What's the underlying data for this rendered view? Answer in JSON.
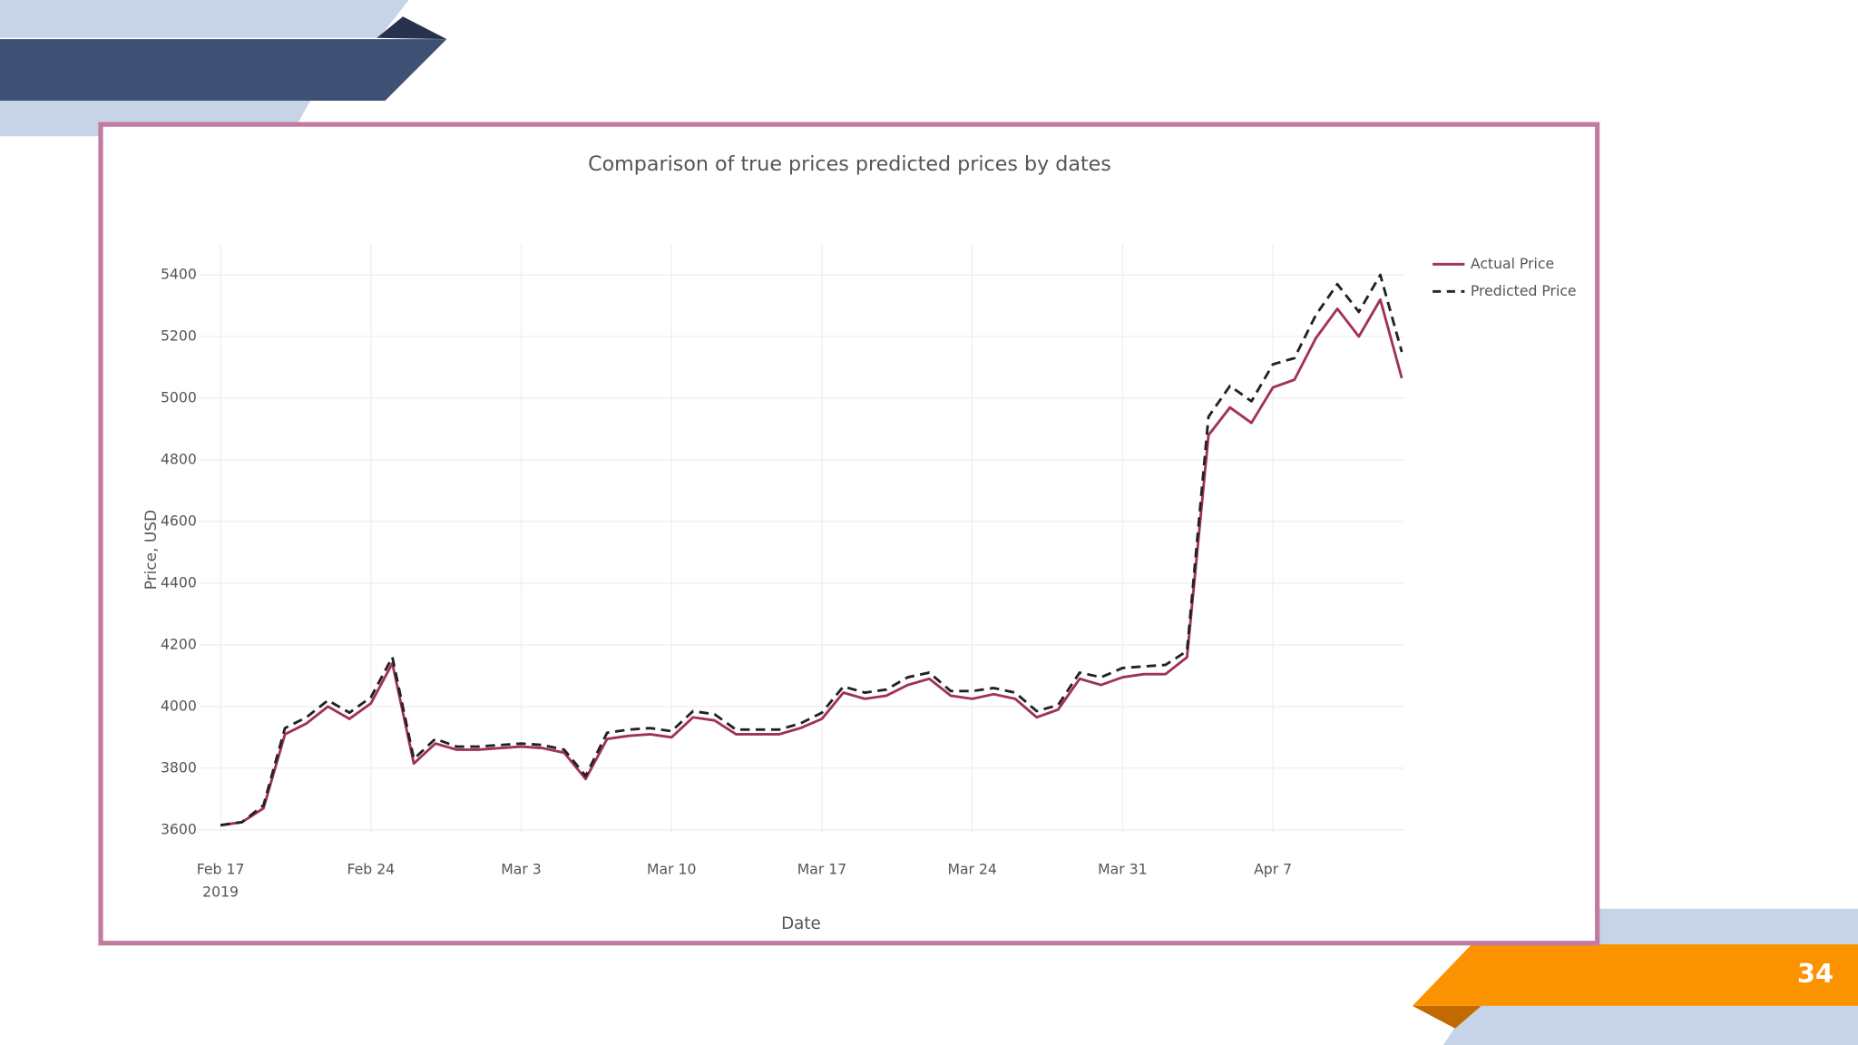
{
  "slide": {
    "page_number": "34"
  },
  "chart_data": {
    "type": "line",
    "title": "Comparison of true prices predicted prices by dates",
    "x_label": "Date",
    "y_label": "Price, USD",
    "x": [
      "2019-02-17",
      "2019-02-18",
      "2019-02-19",
      "2019-02-20",
      "2019-02-21",
      "2019-02-22",
      "2019-02-23",
      "2019-02-24",
      "2019-02-25",
      "2019-02-26",
      "2019-02-27",
      "2019-02-28",
      "2019-03-01",
      "2019-03-02",
      "2019-03-03",
      "2019-03-04",
      "2019-03-05",
      "2019-03-06",
      "2019-03-07",
      "2019-03-08",
      "2019-03-09",
      "2019-03-10",
      "2019-03-11",
      "2019-03-12",
      "2019-03-13",
      "2019-03-14",
      "2019-03-15",
      "2019-03-16",
      "2019-03-17",
      "2019-03-18",
      "2019-03-19",
      "2019-03-20",
      "2019-03-21",
      "2019-03-22",
      "2019-03-23",
      "2019-03-24",
      "2019-03-25",
      "2019-03-26",
      "2019-03-27",
      "2019-03-28",
      "2019-03-29",
      "2019-03-30",
      "2019-03-31",
      "2019-04-01",
      "2019-04-02",
      "2019-04-03",
      "2019-04-04",
      "2019-04-05",
      "2019-04-06",
      "2019-04-07",
      "2019-04-08",
      "2019-04-09",
      "2019-04-10",
      "2019-04-11",
      "2019-04-12",
      "2019-04-13"
    ],
    "series": [
      {
        "name": "Actual Price",
        "color": "#a0325a",
        "dash": "solid",
        "values": [
          3615,
          3625,
          3670,
          3910,
          3945,
          4000,
          3960,
          4010,
          4140,
          3815,
          3880,
          3860,
          3860,
          3865,
          3870,
          3865,
          3850,
          3765,
          3895,
          3905,
          3910,
          3900,
          3965,
          3955,
          3910,
          3910,
          3910,
          3930,
          3960,
          4045,
          4025,
          4035,
          4070,
          4090,
          4035,
          4025,
          4040,
          4025,
          3965,
          3990,
          4090,
          4070,
          4095,
          4105,
          4105,
          4160,
          4880,
          4970,
          4920,
          5035,
          5060,
          5195,
          5290,
          5200,
          5320,
          5065
        ]
      },
      {
        "name": "Predicted Price",
        "color": "#222222",
        "dash": "dashed",
        "values": [
          3615,
          3625,
          3680,
          3930,
          3965,
          4020,
          3980,
          4030,
          4160,
          3830,
          3895,
          3870,
          3870,
          3875,
          3880,
          3875,
          3860,
          3775,
          3915,
          3925,
          3930,
          3920,
          3985,
          3975,
          3925,
          3925,
          3925,
          3945,
          3980,
          4065,
          4045,
          4055,
          4095,
          4110,
          4050,
          4050,
          4060,
          4045,
          3985,
          4005,
          4110,
          4095,
          4125,
          4130,
          4135,
          4180,
          4940,
          5040,
          4990,
          5110,
          5130,
          5270,
          5370,
          5280,
          5400,
          5150
        ]
      }
    ],
    "xlim": [
      "2019-02-16",
      "2019-04-13"
    ],
    "xticks": [
      {
        "value": "2019-02-17",
        "label": "Feb 17\n2019"
      },
      {
        "value": "2019-02-24",
        "label": "Feb 24"
      },
      {
        "value": "2019-03-03",
        "label": "Mar 3"
      },
      {
        "value": "2019-03-10",
        "label": "Mar 10"
      },
      {
        "value": "2019-03-17",
        "label": "Mar 17"
      },
      {
        "value": "2019-03-24",
        "label": "Mar 24"
      },
      {
        "value": "2019-03-31",
        "label": "Mar 31"
      },
      {
        "value": "2019-04-07",
        "label": "Apr 7"
      }
    ],
    "ylim": [
      3590,
      5500
    ],
    "yticks": [
      3600,
      3800,
      4000,
      4200,
      4400,
      4600,
      4800,
      5000,
      5200,
      5400
    ],
    "grid": true,
    "legend": "right"
  }
}
